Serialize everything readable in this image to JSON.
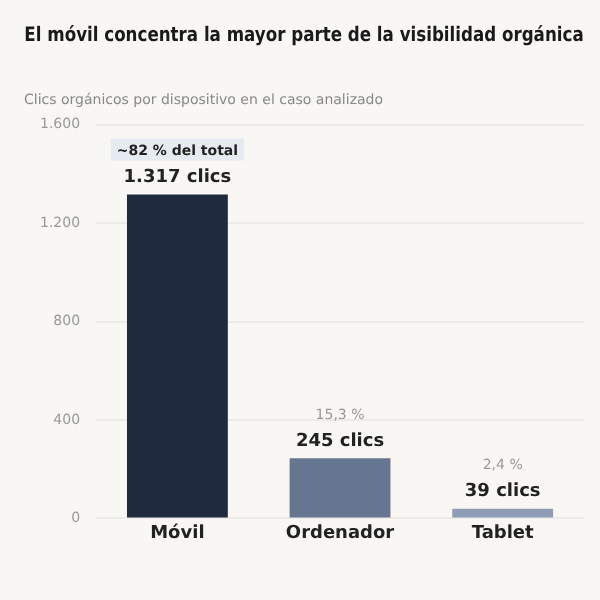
{
  "chart_data": {
    "type": "bar",
    "title": "El móvil concentra la mayor parte de la visibilidad orgánica",
    "subtitle": "Clics orgánicos por dispositivo en el caso analizado",
    "categories": [
      "Móvil",
      "Ordenador",
      "Tablet"
    ],
    "values": [
      1317,
      245,
      39
    ],
    "colors": [
      "#1f2a3f",
      "#667590",
      "#8e9cb5"
    ],
    "value_labels": [
      "1.317 clics",
      "245 clics",
      "39 clics"
    ],
    "annotations": [
      {
        "text": "~82 % del total",
        "x": "Móvil",
        "y": 1317
      },
      {
        "text": "15,3 %",
        "x": "Ordenador",
        "y": 245
      },
      {
        "text": "2,4 %",
        "x": "Tablet",
        "y": 39
      }
    ],
    "ylim": [
      0,
      1600
    ],
    "yticks": [
      0,
      {
        "value": 400,
        "label": "400"
      },
      {
        "value": 800,
        "label": "800"
      },
      {
        "value": 1200,
        "label": "1.200"
      },
      {
        "value": 1600,
        "label": "1.600"
      }
    ],
    "grid": "y",
    "legend": false
  }
}
